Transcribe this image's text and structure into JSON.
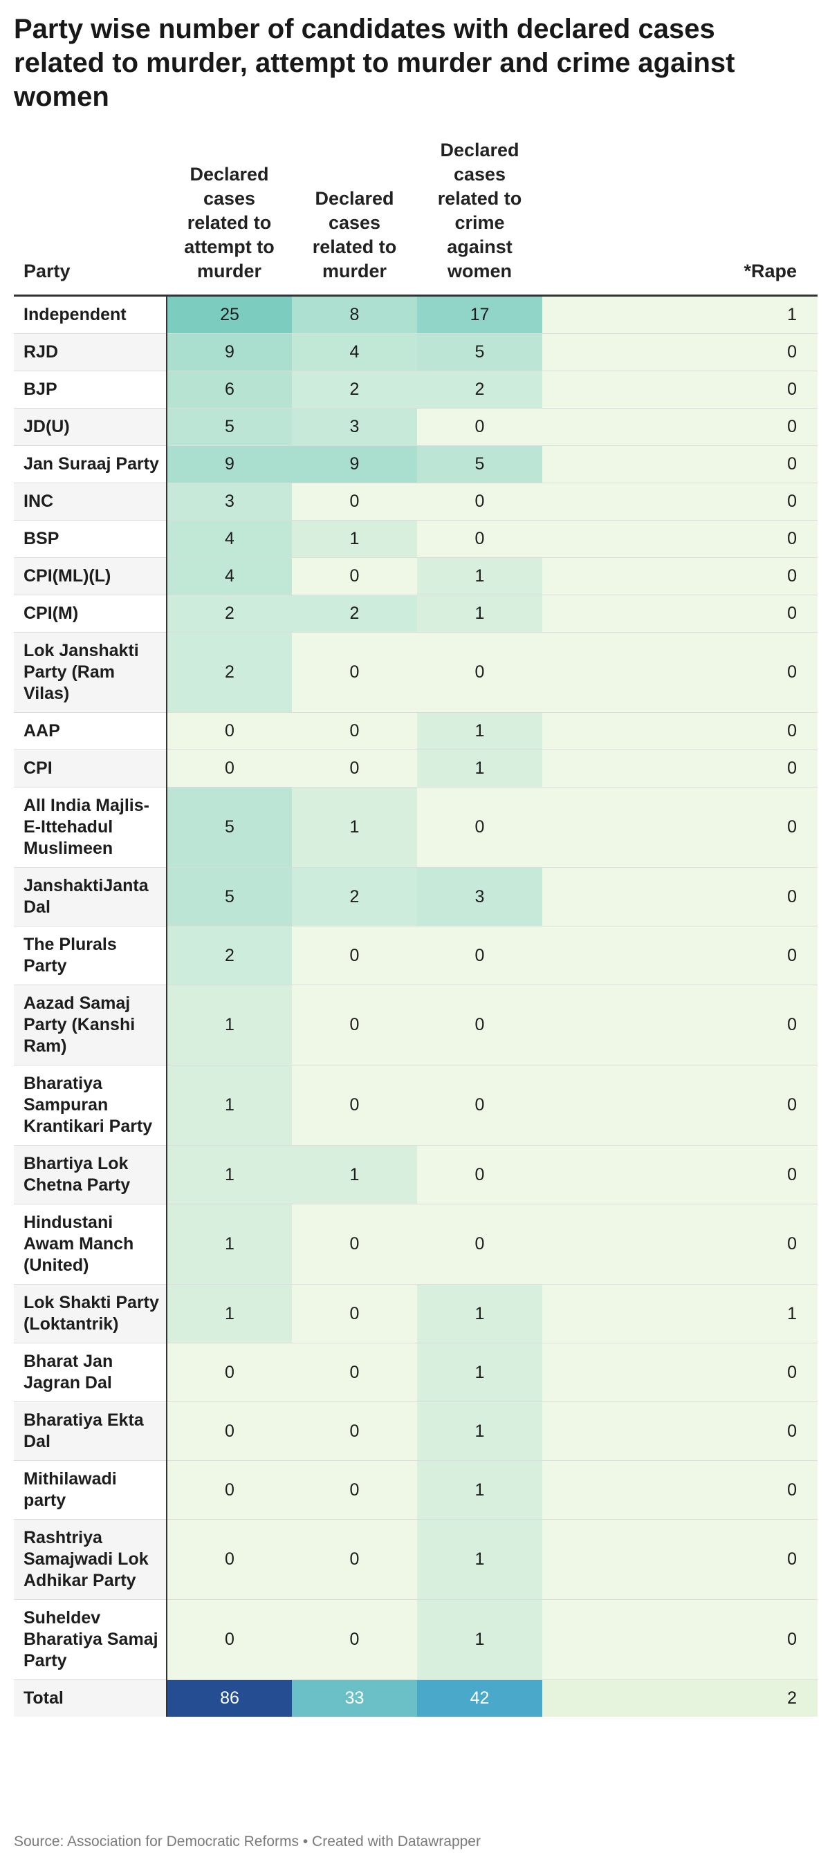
{
  "title": "Party wise number of candidates with declared cases related to murder, attempt to murder and crime against women",
  "footer": {
    "source": "Source: Association for Democratic Reforms",
    "separator": "•",
    "credit": "Created with Datawrapper"
  },
  "chart_data": {
    "type": "table",
    "title": "Party wise number of candidates with declared cases related to murder, attempt to murder and crime against women",
    "columns": [
      "Party",
      "Declared cases related to attempt to murder",
      "Declared cases related to murder",
      "Declared cases related to crime against women",
      "*Rape"
    ],
    "rows": [
      {
        "party": "Independent",
        "attempt": 25,
        "murder": 8,
        "women": 17,
        "rape": 1
      },
      {
        "party": "RJD",
        "attempt": 9,
        "murder": 4,
        "women": 5,
        "rape": 0
      },
      {
        "party": "BJP",
        "attempt": 6,
        "murder": 2,
        "women": 2,
        "rape": 0
      },
      {
        "party": "JD(U)",
        "attempt": 5,
        "murder": 3,
        "women": 0,
        "rape": 0
      },
      {
        "party": "Jan Suraaj Party",
        "attempt": 9,
        "murder": 9,
        "women": 5,
        "rape": 0
      },
      {
        "party": "INC",
        "attempt": 3,
        "murder": 0,
        "women": 0,
        "rape": 0
      },
      {
        "party": "BSP",
        "attempt": 4,
        "murder": 1,
        "women": 0,
        "rape": 0
      },
      {
        "party": "CPI(ML)(L)",
        "attempt": 4,
        "murder": 0,
        "women": 1,
        "rape": 0
      },
      {
        "party": "CPI(M)",
        "attempt": 2,
        "murder": 2,
        "women": 1,
        "rape": 0
      },
      {
        "party": "Lok Janshakti Party (Ram Vilas)",
        "attempt": 2,
        "murder": 0,
        "women": 0,
        "rape": 0
      },
      {
        "party": "AAP",
        "attempt": 0,
        "murder": 0,
        "women": 1,
        "rape": 0
      },
      {
        "party": "CPI",
        "attempt": 0,
        "murder": 0,
        "women": 1,
        "rape": 0
      },
      {
        "party": "All India Majlis-E-Ittehadul Muslimeen",
        "attempt": 5,
        "murder": 1,
        "women": 0,
        "rape": 0
      },
      {
        "party": "JanshaktiJanta Dal",
        "attempt": 5,
        "murder": 2,
        "women": 3,
        "rape": 0
      },
      {
        "party": "The Plurals Party",
        "attempt": 2,
        "murder": 0,
        "women": 0,
        "rape": 0
      },
      {
        "party": "Aazad Samaj Party (Kanshi Ram)",
        "attempt": 1,
        "murder": 0,
        "women": 0,
        "rape": 0
      },
      {
        "party": "Bharatiya Sampuran Krantikari Party",
        "attempt": 1,
        "murder": 0,
        "women": 0,
        "rape": 0
      },
      {
        "party": "Bhartiya Lok Chetna Party",
        "attempt": 1,
        "murder": 1,
        "women": 0,
        "rape": 0
      },
      {
        "party": "Hindustani Awam Manch (United)",
        "attempt": 1,
        "murder": 0,
        "women": 0,
        "rape": 0
      },
      {
        "party": "Lok Shakti Party (Loktantrik)",
        "attempt": 1,
        "murder": 0,
        "women": 1,
        "rape": 1
      },
      {
        "party": "Bharat Jan Jagran Dal",
        "attempt": 0,
        "murder": 0,
        "women": 1,
        "rape": 0
      },
      {
        "party": "Bharatiya Ekta Dal",
        "attempt": 0,
        "murder": 0,
        "women": 1,
        "rape": 0
      },
      {
        "party": "Mithilawadi party",
        "attempt": 0,
        "murder": 0,
        "women": 1,
        "rape": 0
      },
      {
        "party": "Rashtriya Samajwadi Lok Adhikar Party",
        "attempt": 0,
        "murder": 0,
        "women": 1,
        "rape": 0
      },
      {
        "party": "Suheldev Bharatiya Samaj Party",
        "attempt": 0,
        "murder": 0,
        "women": 1,
        "rape": 0
      }
    ],
    "total": {
      "party": "Total",
      "attempt": 86,
      "murder": 33,
      "women": 42,
      "rape": 2
    }
  },
  "colors": {
    "scale_low": "#eff8e6",
    "scale_high": "#7ccdc0",
    "total_attempt": "#244e91",
    "total_murder": "#6ac0c6",
    "total_women": "#4aa8cb",
    "total_rape": "#e7f4dd",
    "stripe": "#f5f5f5",
    "text_light": "#ffffff"
  }
}
